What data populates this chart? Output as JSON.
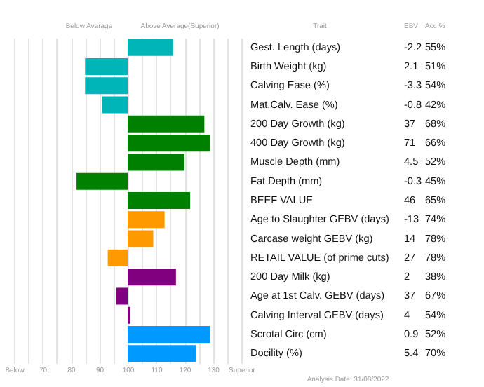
{
  "chart_data": {
    "type": "bar",
    "orientation": "horizontal",
    "categories": [
      "Gest. Length (days)",
      "Birth Weight (kg)",
      "Calving Ease (%)",
      "Mat.Calv. Ease (%)",
      "200 Day Growth (kg)",
      "400 Day Growth (kg)",
      "Muscle Depth (mm)",
      "Fat Depth (mm)",
      "BEEF VALUE",
      "Age to Slaughter GEBV (days)",
      "Carcase weight GEBV (kg)",
      "RETAIL VALUE (of prime cuts)",
      "200 Day Milk (kg)",
      "Age at 1st Calv. GEBV (days)",
      "Calving Interval GEBV (days)",
      "Scrotal Circ (cm)",
      "Docility (%)"
    ],
    "base": [
      100,
      100,
      100,
      100,
      100,
      100,
      100,
      100,
      100,
      100,
      100,
      100,
      100,
      100,
      100,
      100,
      100
    ],
    "values": [
      16,
      -15,
      -15,
      -9,
      27,
      29,
      20,
      -18,
      22,
      13,
      9,
      -7,
      17,
      -4,
      1,
      29,
      24
    ],
    "colors": [
      "#00b5b8",
      "#00b5b8",
      "#00b5b8",
      "#00b5b8",
      "#008000",
      "#008000",
      "#008000",
      "#008000",
      "#008000",
      "#ff9900",
      "#ff9900",
      "#ff9900",
      "#800080",
      "#800080",
      "#800080",
      "#0099ff",
      "#0099ff"
    ],
    "xlim": [
      60,
      140
    ],
    "xticks": [
      {
        "value": 60,
        "label": "Below"
      },
      {
        "value": 65,
        "label": null
      },
      70,
      {
        "value": 75,
        "label": null
      },
      80,
      {
        "value": 85,
        "label": null
      },
      90,
      {
        "value": 95,
        "label": null
      },
      100,
      {
        "value": 105,
        "label": null
      },
      110,
      {
        "value": 115,
        "label": null
      },
      120,
      {
        "value": 125,
        "label": null
      },
      130,
      {
        "value": 135,
        "label": null
      },
      {
        "value": 140,
        "label": "Superior"
      }
    ],
    "grid": "x",
    "annotations": [
      "Below Average",
      "Above Average(Superior)",
      "Trait",
      "EBV",
      "Acc %",
      "-2.2",
      "55%",
      "2.1",
      "51%",
      "-3.3",
      "54%",
      "-0.8",
      "42%",
      "37",
      "68%",
      "71",
      "66%",
      "4.5",
      "52%",
      "-0.3",
      "45%",
      "46",
      "65%",
      "-13",
      "74%",
      "14",
      "78%",
      "27",
      "78%",
      "2",
      "38%",
      "37",
      "67%",
      "4",
      "54%",
      "0.9",
      "52%",
      "5.4",
      "70%",
      "Analysis Date: 31/08/2022"
    ]
  }
}
